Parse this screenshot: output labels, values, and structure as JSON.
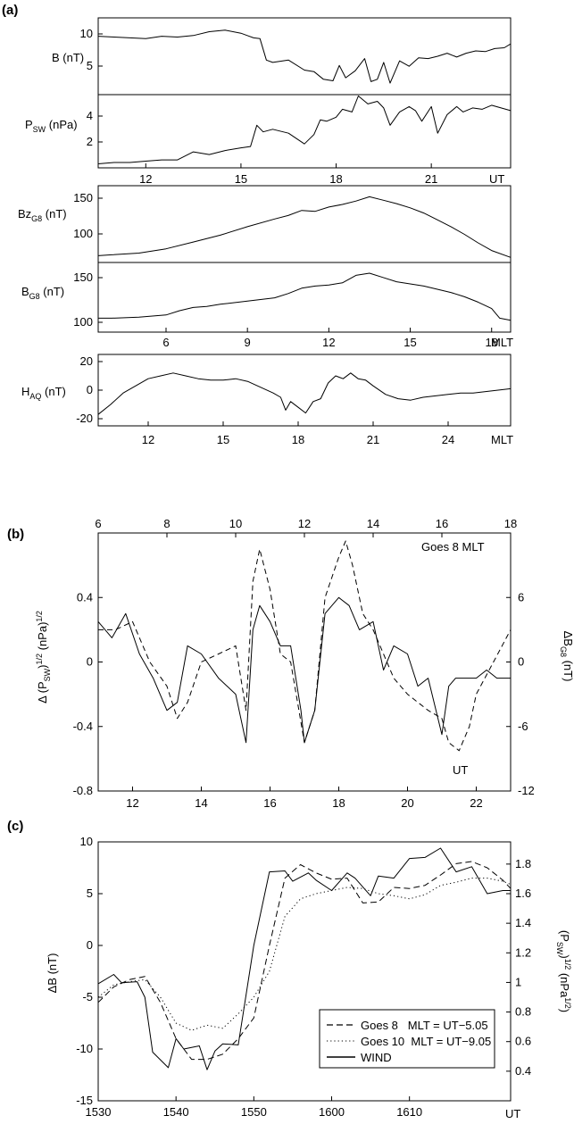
{
  "panel_labels": {
    "a": "(a)",
    "b": "(b)",
    "c": "(c)"
  },
  "chart_data": [
    {
      "panel": "a",
      "type": "line",
      "x_label": "UT",
      "x_ticks": [
        12,
        15,
        18,
        21
      ],
      "xlim": [
        10.5,
        23.5
      ],
      "subplots": [
        {
          "name": "B",
          "ylabel": "B (nT)",
          "ylim": [
            2,
            12
          ],
          "yticks": [
            5,
            10
          ],
          "x": [
            10.5,
            11,
            11.5,
            12,
            12.5,
            13,
            13.5,
            14,
            14.5,
            15,
            15.2,
            15.4,
            15.6,
            15.8,
            16,
            16.5,
            17,
            17.3,
            17.6,
            17.9,
            18.1,
            18.3,
            18.6,
            18.9,
            19.1,
            19.3,
            19.5,
            19.7,
            20,
            20.3,
            20.6,
            20.9,
            21.2,
            21.5,
            21.8,
            22.1,
            22.4,
            22.7,
            23,
            23.3,
            23.5
          ],
          "values": [
            9.6,
            9.5,
            9.4,
            9.3,
            9.6,
            9.5,
            9.7,
            10.2,
            10.4,
            10,
            9.7,
            9.4,
            9.3,
            6.5,
            6.2,
            6.5,
            5.2,
            5,
            4,
            3.8,
            5.8,
            4.2,
            5.1,
            6.7,
            3.7,
            4,
            6.2,
            3.5,
            6.4,
            5.7,
            6.8,
            6.7,
            7,
            7.4,
            6.9,
            7.4,
            7.7,
            7.6,
            8,
            8.1,
            8.6
          ]
        },
        {
          "name": "P_SW",
          "ylabel": "P_SW (nPa)",
          "ylim": [
            0,
            5.5
          ],
          "yticks": [
            2,
            4
          ],
          "x": [
            10.5,
            11,
            11.5,
            12,
            12.5,
            13,
            13.5,
            14,
            14.5,
            15,
            15.3,
            15.5,
            15.7,
            16,
            16.5,
            17,
            17.3,
            17.5,
            17.7,
            18,
            18.2,
            18.5,
            18.7,
            19,
            19.3,
            19.5,
            19.7,
            20,
            20.3,
            20.5,
            20.7,
            21,
            21.2,
            21.5,
            21.8,
            22,
            22.3,
            22.6,
            22.9,
            23.2,
            23.5
          ],
          "values": [
            0.3,
            0.4,
            0.4,
            0.5,
            0.6,
            0.6,
            1.2,
            1,
            1.3,
            1.5,
            1.6,
            3.2,
            2.7,
            2.9,
            2.6,
            1.8,
            2.5,
            3.6,
            3.5,
            3.8,
            4.4,
            4.2,
            5.4,
            4.8,
            5,
            4.5,
            3.2,
            4.2,
            4.6,
            4.3,
            3.5,
            4.6,
            2.6,
            4,
            4.6,
            4.2,
            4.5,
            4.4,
            4.7,
            4.5,
            4.3
          ]
        }
      ]
    },
    {
      "panel": "a-mlt",
      "type": "line",
      "x_label": "MLT",
      "x_ticks": [
        6,
        9,
        12,
        15,
        18
      ],
      "xlim": [
        3.5,
        18.7
      ],
      "subplots": [
        {
          "name": "Bz_G8",
          "ylabel": "Bz_G8 (nT)",
          "ylim": [
            70,
            160
          ],
          "yticks": [
            100,
            150
          ],
          "x": [
            3.5,
            4,
            5,
            6,
            7,
            8,
            9,
            10,
            10.5,
            11,
            11.5,
            12,
            12.5,
            13,
            13.5,
            14,
            14.5,
            15,
            15.5,
            16,
            16.5,
            17,
            17.5,
            18,
            18.7
          ],
          "values": [
            78,
            79,
            81,
            86,
            94,
            102,
            112,
            121,
            125,
            131,
            130,
            135,
            138,
            142,
            147,
            143,
            139,
            134,
            128,
            120,
            112,
            103,
            93,
            84,
            76
          ]
        },
        {
          "name": "B_G8",
          "ylabel": "B_G8 (nT)",
          "ylim": [
            95,
            160
          ],
          "yticks": [
            100,
            150
          ],
          "x": [
            3.5,
            4,
            5,
            6,
            6.5,
            7,
            7.5,
            8,
            9,
            10,
            10.5,
            11,
            11.5,
            12,
            12.5,
            13,
            13.5,
            14,
            14.5,
            15,
            15.5,
            16,
            16.5,
            17,
            17.5,
            18,
            18.3,
            18.7
          ],
          "values": [
            108,
            108,
            109,
            111,
            115,
            118,
            119,
            121,
            124,
            127,
            131,
            136,
            138,
            139,
            141,
            148,
            150,
            146,
            142,
            140,
            138,
            135,
            132,
            128,
            123,
            117,
            108,
            106
          ]
        }
      ]
    },
    {
      "panel": "a-haq",
      "type": "line",
      "x_label": "MLT",
      "x_ticks": [
        12,
        15,
        18,
        21,
        24
      ],
      "xlim": [
        10,
        26.5
      ],
      "subplots": [
        {
          "name": "H_AQ",
          "ylabel": "H_AQ (nT)",
          "ylim": [
            -25,
            25
          ],
          "yticks": [
            -20,
            0,
            20
          ],
          "x": [
            10,
            10.5,
            11,
            11.5,
            12,
            12.5,
            13,
            13.5,
            14,
            14.5,
            15,
            15.5,
            16,
            16.5,
            17,
            17.3,
            17.5,
            17.7,
            18,
            18.3,
            18.6,
            18.9,
            19.2,
            19.5,
            19.8,
            20.1,
            20.4,
            20.7,
            21,
            21.5,
            22,
            22.5,
            23,
            23.5,
            24,
            24.5,
            25,
            25.5,
            26,
            26.5
          ],
          "values": [
            -17,
            -10,
            -2,
            3,
            8,
            10,
            12,
            10,
            8,
            7,
            7,
            8,
            6,
            2,
            -2,
            -5,
            -14,
            -8,
            -12,
            -16,
            -8,
            -6,
            5,
            10,
            8,
            12,
            8,
            7,
            3,
            -3,
            -6,
            -7,
            -5,
            -4,
            -3,
            -2,
            -2,
            -1,
            0,
            1
          ]
        }
      ]
    },
    {
      "panel": "b",
      "type": "line",
      "x_label": "UT",
      "x_ticks": [
        12,
        14,
        16,
        18,
        20,
        22
      ],
      "xlim": [
        11,
        23
      ],
      "top_axis_label": "Goes 8 MLT",
      "top_ticks": [
        6,
        8,
        10,
        12,
        14,
        16,
        18
      ],
      "ylim": [
        -0.8,
        0.8
      ],
      "yticks": [
        -0.8,
        -0.4,
        0,
        0.4
      ],
      "ylabel": "Δ (P_SW)^1/2 (nPa)^1/2",
      "right_ylim": [
        -12,
        12
      ],
      "right_ticks": [
        -12,
        -6,
        0,
        6
      ],
      "right_ylabel": "ΔB_G8 (nT)",
      "series": [
        {
          "style": "solid",
          "x": [
            11,
            11.4,
            11.8,
            12.2,
            12.6,
            13,
            13.3,
            13.6,
            14,
            14.5,
            15,
            15.3,
            15.5,
            15.7,
            16,
            16.3,
            16.6,
            16.9,
            17,
            17.3,
            17.6,
            18,
            18.3,
            18.6,
            19,
            19.3,
            19.6,
            20,
            20.3,
            20.6,
            21,
            21.2,
            21.4,
            21.7,
            22,
            22.3,
            22.6,
            23
          ],
          "values": [
            0.25,
            0.15,
            0.3,
            0.05,
            -0.1,
            -0.3,
            -0.25,
            0.1,
            0.05,
            -0.1,
            -0.2,
            -0.5,
            0.2,
            0.35,
            0.25,
            0.1,
            0.1,
            -0.3,
            -0.5,
            -0.3,
            0.3,
            0.4,
            0.35,
            0.2,
            0.25,
            -0.05,
            0.1,
            0.05,
            -0.15,
            -0.1,
            -0.45,
            -0.15,
            -0.1,
            -0.1,
            -0.1,
            -0.05,
            -0.1,
            -0.1
          ]
        },
        {
          "style": "dashed",
          "x": [
            11,
            11.5,
            12,
            12.5,
            13,
            13.3,
            13.6,
            14,
            14.5,
            15,
            15.3,
            15.5,
            15.7,
            16,
            16.3,
            16.6,
            17,
            17.3,
            17.6,
            18,
            18.2,
            18.4,
            18.7,
            19,
            19.3,
            19.6,
            20,
            20.3,
            20.6,
            21,
            21.2,
            21.5,
            21.8,
            22,
            22.5,
            23
          ],
          "values": [
            0.2,
            0.2,
            0.25,
            0.0,
            -0.15,
            -0.35,
            -0.25,
            0.0,
            0.05,
            0.1,
            -0.3,
            0.5,
            0.7,
            0.45,
            0.05,
            0.0,
            -0.5,
            -0.3,
            0.4,
            0.65,
            0.75,
            0.6,
            0.3,
            0.2,
            0.05,
            -0.1,
            -0.2,
            -0.25,
            -0.3,
            -0.35,
            -0.5,
            -0.55,
            -0.4,
            -0.2,
            0.0,
            0.2
          ]
        }
      ]
    },
    {
      "panel": "c",
      "type": "line",
      "x_label": "UT",
      "x_ticks": [
        "1530",
        "1540",
        "1550",
        "1600",
        "1610"
      ],
      "xlim": [
        0,
        53
      ],
      "ylim": [
        -15,
        10
      ],
      "yticks": [
        -15,
        -10,
        -5,
        0,
        5,
        10
      ],
      "ylabel": "ΔB (nT)",
      "right_ylim": [
        0.2,
        1.95
      ],
      "right_ticks": [
        0.4,
        0.6,
        0.8,
        1,
        1.2,
        1.4,
        1.6,
        1.8
      ],
      "right_ylabel": "(P_SW)^1/2 (nPa^1/2)",
      "series": [
        {
          "name": "Goes 8   MLT = UT−5.05",
          "style": "dashed",
          "x": [
            0,
            2,
            4,
            6,
            8,
            10,
            12,
            14,
            16,
            18,
            20,
            22,
            24,
            26,
            28,
            30,
            32,
            34,
            36,
            38,
            40,
            42,
            44,
            46,
            48,
            50,
            52,
            53
          ],
          "values": [
            -5.5,
            -4,
            -3.3,
            -3,
            -5.5,
            -9,
            -11,
            -11,
            -10.5,
            -9,
            -7,
            0,
            6.5,
            7.8,
            7,
            6.4,
            6.5,
            4.1,
            4.2,
            5.6,
            5.5,
            5.8,
            6.8,
            7.9,
            8.1,
            7.5,
            6.3,
            5.5
          ]
        },
        {
          "name": "Goes 10  MLT = UT−9.05",
          "style": "dotted",
          "x": [
            0,
            2,
            4,
            6,
            8,
            10,
            12,
            14,
            16,
            18,
            20,
            22,
            24,
            26,
            28,
            30,
            32,
            34,
            36,
            38,
            40,
            42,
            44,
            46,
            48,
            50,
            52,
            53
          ],
          "values": [
            -5,
            -3.8,
            -3.5,
            -3.3,
            -5,
            -7.5,
            -8.2,
            -7.7,
            -8,
            -6.6,
            -5,
            -2.5,
            2.8,
            4.5,
            5,
            5.3,
            5.6,
            5.5,
            5,
            4.8,
            4.5,
            4.9,
            5.8,
            6.1,
            6.5,
            6.5,
            6.2,
            5.9
          ]
        },
        {
          "name": "WIND",
          "style": "solid",
          "x": [
            0,
            2,
            3,
            5,
            6,
            7,
            9,
            10,
            11,
            13,
            14,
            15,
            16,
            18,
            20,
            22,
            24,
            25,
            27,
            28,
            30,
            32,
            33,
            35,
            36,
            38,
            40,
            42,
            44,
            46,
            48,
            50,
            52,
            53
          ],
          "values": [
            -3.7,
            -2.8,
            -3.6,
            -3.5,
            -5,
            -10.3,
            -11.8,
            -9,
            -10,
            -9.7,
            -12,
            -10.2,
            -9.5,
            -9.6,
            0,
            7.1,
            7.2,
            6.2,
            7,
            6.3,
            5.3,
            7,
            6.5,
            4.8,
            6.7,
            6.5,
            8.4,
            8.5,
            9.4,
            7.1,
            7.6,
            5,
            5.3,
            5.3
          ]
        }
      ],
      "legend_position": "bottom-right"
    }
  ]
}
